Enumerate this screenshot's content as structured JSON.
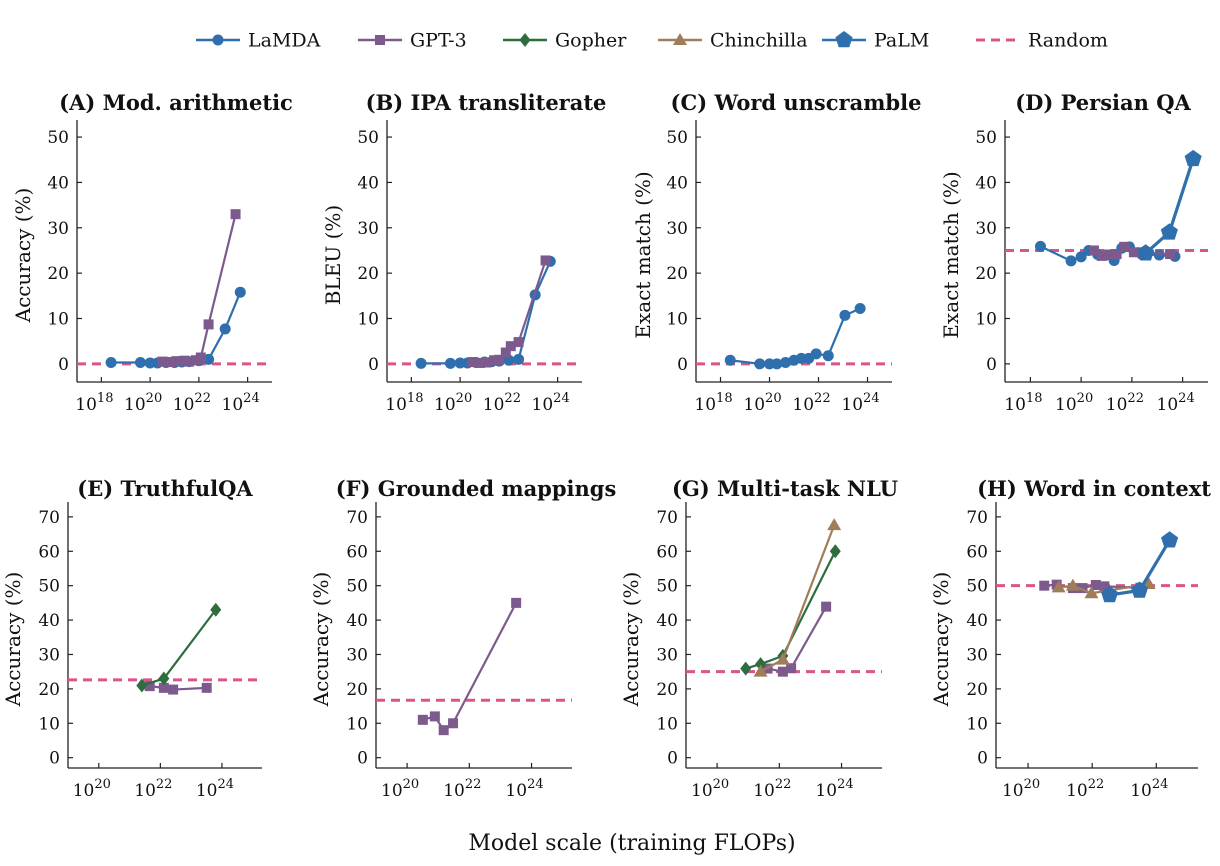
{
  "series_styles": [
    {
      "key": "lamda",
      "name": "LaMDA",
      "color": "#2f6fad",
      "marker": "circle"
    },
    {
      "key": "gpt3",
      "name": "GPT-3",
      "color": "#7d5a8e",
      "marker": "square"
    },
    {
      "key": "gopher",
      "name": "Gopher",
      "color": "#2e6e3e",
      "marker": "diamond"
    },
    {
      "key": "chinchilla",
      "name": "Chinchilla",
      "color": "#a07d5a",
      "marker": "triangle"
    },
    {
      "key": "palm",
      "name": "PaLM",
      "color": "#2f6fad",
      "marker": "pentagon"
    },
    {
      "key": "random",
      "name": "Random",
      "color": "#d9558a",
      "marker": "dash"
    }
  ],
  "xlabel": "Model scale (training FLOPs)",
  "chart_data": [
    {
      "type": "line",
      "title": "(A) Mod. arithmetic",
      "ylabel": "Accuracy (%)",
      "xscale": "log",
      "xlim": [
        1e+17,
        1e+25
      ],
      "xticks": [
        1e+18,
        1e+20,
        1e+22,
        1e+24
      ],
      "xtick_labels": [
        [
          "10",
          "18"
        ],
        [
          "10",
          "20"
        ],
        [
          "10",
          "22"
        ],
        [
          "10",
          "24"
        ]
      ],
      "ylim": [
        -4,
        52
      ],
      "yticks": [
        0,
        10,
        20,
        30,
        40,
        50
      ],
      "random": 0,
      "series": [
        {
          "key": "lamda",
          "x": [
            2.5e+18,
            4e+19,
            1e+20,
            2e+20,
            4.5e+20,
            1e+21,
            2e+21,
            4e+21,
            1e+22,
            2.5e+22,
            1.2e+23,
            5e+23
          ],
          "y": [
            0.3,
            0.3,
            0.2,
            0.2,
            0.3,
            0.3,
            0.4,
            0.5,
            0.7,
            1.0,
            7.7,
            15.8
          ]
        },
        {
          "key": "gpt3",
          "x": [
            3.2e+20,
            6.5e+20,
            1.2e+21,
            2.5e+21,
            4e+21,
            7.5e+21,
            1.2e+22,
            2.5e+22,
            3.2e+23
          ],
          "y": [
            0.5,
            0.4,
            0.6,
            0.7,
            0.5,
            0.8,
            1.4,
            8.7,
            33
          ]
        }
      ]
    },
    {
      "type": "line",
      "title": "(B) IPA transliterate",
      "ylabel": "BLEU (%)",
      "xscale": "log",
      "xlim": [
        1e+17,
        1e+25
      ],
      "xticks": [
        1e+18,
        1e+20,
        1e+22,
        1e+24
      ],
      "xtick_labels": [
        [
          "10",
          "18"
        ],
        [
          "10",
          "20"
        ],
        [
          "10",
          "22"
        ],
        [
          "10",
          "24"
        ]
      ],
      "ylim": [
        -4,
        52
      ],
      "yticks": [
        0,
        10,
        20,
        30,
        40,
        50
      ],
      "random": 0,
      "series": [
        {
          "key": "lamda",
          "x": [
            2.5e+18,
            4e+19,
            1e+20,
            2e+20,
            4.5e+20,
            1e+21,
            2e+21,
            4e+21,
            1e+22,
            2.5e+22,
            1.2e+23,
            5e+23
          ],
          "y": [
            0.1,
            0.1,
            0.2,
            0.2,
            0.3,
            0.4,
            0.5,
            0.6,
            0.8,
            1.0,
            15.2,
            22.6
          ]
        },
        {
          "key": "gpt3",
          "x": [
            3.2e+20,
            6.5e+20,
            1.2e+21,
            2.5e+21,
            4e+21,
            7.5e+21,
            1.2e+22,
            2.5e+22,
            3.2e+23
          ],
          "y": [
            0.4,
            0.2,
            0.3,
            0.8,
            0.9,
            2.5,
            3.9,
            4.8,
            22.8
          ]
        }
      ]
    },
    {
      "type": "line",
      "title": "(C) Word unscramble",
      "ylabel": "Exact match (%)",
      "xscale": "log",
      "xlim": [
        1e+17,
        1e+25
      ],
      "xticks": [
        1e+18,
        1e+20,
        1e+22,
        1e+24
      ],
      "xtick_labels": [
        [
          "10",
          "18"
        ],
        [
          "10",
          "20"
        ],
        [
          "10",
          "22"
        ],
        [
          "10",
          "24"
        ]
      ],
      "ylim": [
        -4,
        52
      ],
      "yticks": [
        0,
        10,
        20,
        30,
        40,
        50
      ],
      "random": 0,
      "series": [
        {
          "key": "lamda",
          "x": [
            2.5e+18,
            4e+19,
            1e+20,
            2e+20,
            4.5e+20,
            1e+21,
            2e+21,
            4e+21,
            8e+21,
            2.5e+22,
            1.2e+23,
            5e+23
          ],
          "y": [
            0.8,
            0.0,
            0.0,
            0.0,
            0.3,
            0.8,
            1.2,
            1.2,
            2.2,
            1.8,
            10.7,
            12.2
          ]
        }
      ]
    },
    {
      "type": "line",
      "title": "(D) Persian QA",
      "ylabel": "Exact match (%)",
      "xscale": "log",
      "xlim": [
        1e+17,
        1e+25
      ],
      "xticks": [
        1e+18,
        1e+20,
        1e+22,
        1e+24
      ],
      "xtick_labels": [
        [
          "10",
          "18"
        ],
        [
          "10",
          "20"
        ],
        [
          "10",
          "22"
        ],
        [
          "10",
          "24"
        ]
      ],
      "ylim": [
        -4,
        52
      ],
      "yticks": [
        0,
        10,
        20,
        30,
        40,
        50
      ],
      "random": 25,
      "series": [
        {
          "key": "lamda",
          "x": [
            2.5e+18,
            4e+19,
            1e+20,
            2e+20,
            4.5e+20,
            1e+21,
            2e+21,
            4e+21,
            8e+21,
            2.5e+22,
            1.2e+23,
            5e+23
          ],
          "y": [
            25.9,
            22.7,
            23.6,
            25.0,
            24.1,
            24.0,
            22.8,
            25.5,
            25.8,
            24.1,
            24.0,
            23.7
          ]
        },
        {
          "key": "gpt3",
          "x": [
            3.2e+20,
            6.5e+20,
            1.2e+21,
            2.5e+21,
            5e+21,
            1.2e+22,
            2.5e+22,
            3.2e+23
          ],
          "y": [
            25.0,
            23.8,
            24.1,
            24.2,
            25.8,
            24.6,
            24.6,
            24.2
          ]
        },
        {
          "key": "palm",
          "x": [
            3.5e+22,
            3e+23,
            2.6e+24
          ],
          "y": [
            24.4,
            29.0,
            45.2
          ]
        }
      ]
    },
    {
      "type": "line",
      "title": "(E) TruthfulQA",
      "ylabel": "Accuracy (%)",
      "xscale": "log",
      "xlim": [
        1e+19,
        2e+25
      ],
      "xticks": [
        1e+20,
        1e+22,
        1e+24
      ],
      "xtick_labels": [
        [
          "10",
          "20"
        ],
        [
          "10",
          "22"
        ],
        [
          "10",
          "24"
        ]
      ],
      "ylim": [
        -3,
        72
      ],
      "yticks": [
        0,
        10,
        20,
        30,
        40,
        50,
        60,
        70
      ],
      "random": 22.6,
      "series": [
        {
          "key": "gpt3",
          "x": [
            4.5e+21,
            1.3e+22,
            2.6e+22,
            3.2e+23
          ],
          "y": [
            20.8,
            20.3,
            19.8,
            20.3
          ]
        },
        {
          "key": "gopher",
          "x": [
            2.5e+21,
            1.3e+22,
            6.3e+23
          ],
          "y": [
            21.0,
            23.0,
            43.0
          ]
        }
      ]
    },
    {
      "type": "line",
      "title": "(F) Grounded mappings",
      "ylabel": "Accuracy (%)",
      "xscale": "log",
      "xlim": [
        1e+19,
        2e+25
      ],
      "xticks": [
        1e+20,
        1e+22,
        1e+24
      ],
      "xtick_labels": [
        [
          "10",
          "20"
        ],
        [
          "10",
          "22"
        ],
        [
          "10",
          "24"
        ]
      ],
      "ylim": [
        -3,
        72
      ],
      "yticks": [
        0,
        10,
        20,
        30,
        40,
        50,
        60,
        70
      ],
      "random": 16.7,
      "series": [
        {
          "key": "gpt3",
          "x": [
            3.2e+20,
            7.8e+20,
            1.5e+21,
            3e+21,
            3.2e+23
          ],
          "y": [
            11.0,
            12.0,
            8.0,
            10.0,
            45.0
          ]
        }
      ]
    },
    {
      "type": "line",
      "title": "(G) Multi-task NLU",
      "ylabel": "Accuracy (%)",
      "xscale": "log",
      "xlim": [
        1e+19,
        2e+25
      ],
      "xticks": [
        1e+20,
        1e+22,
        1e+24
      ],
      "xtick_labels": [
        [
          "10",
          "20"
        ],
        [
          "10",
          "22"
        ],
        [
          "10",
          "24"
        ]
      ],
      "ylim": [
        -3,
        72
      ],
      "yticks": [
        0,
        10,
        20,
        30,
        40,
        50,
        60,
        70
      ],
      "random": 25,
      "series": [
        {
          "key": "gpt3",
          "x": [
            4.2e+21,
            1.3e+22,
            2.4e+22,
            3.2e+23
          ],
          "y": [
            25.9,
            25.0,
            26.0,
            43.9
          ]
        },
        {
          "key": "gopher",
          "x": [
            8.3e+20,
            2.5e+21,
            1.3e+22,
            6.3e+23
          ],
          "y": [
            25.9,
            27.2,
            29.6,
            60.0
          ]
        },
        {
          "key": "chinchilla",
          "x": [
            2.5e+21,
            1.3e+22,
            5.8e+23
          ],
          "y": [
            25.0,
            28.5,
            67.6
          ]
        }
      ]
    },
    {
      "type": "line",
      "title": "(H) Word in context",
      "ylabel": "Accuracy (%)",
      "xscale": "log",
      "xlim": [
        1e+19,
        2e+25
      ],
      "xticks": [
        1e+20,
        1e+22,
        1e+24
      ],
      "xtick_labels": [
        [
          "10",
          "20"
        ],
        [
          "10",
          "22"
        ],
        [
          "10",
          "24"
        ]
      ],
      "ylim": [
        -3,
        72
      ],
      "yticks": [
        0,
        10,
        20,
        30,
        40,
        50,
        60,
        70
      ],
      "random": 50,
      "series": [
        {
          "key": "gpt3",
          "x": [
            3.2e+20,
            7.8e+20,
            2.5e+21,
            5e+21,
            1.3e+22,
            2.4e+22,
            3.2e+23
          ],
          "y": [
            50.0,
            50.3,
            49.3,
            49.3,
            50.2,
            49.8,
            49.4
          ]
        },
        {
          "key": "chinchilla",
          "x": [
            9e+20,
            2.5e+21,
            9.5e+21,
            5.8e+23
          ],
          "y": [
            49.5,
            50.0,
            47.8,
            50.5
          ]
        },
        {
          "key": "palm",
          "x": [
            3.5e+22,
            3e+23,
            2.6e+24
          ],
          "y": [
            47.3,
            48.6,
            63.2
          ]
        }
      ]
    }
  ]
}
